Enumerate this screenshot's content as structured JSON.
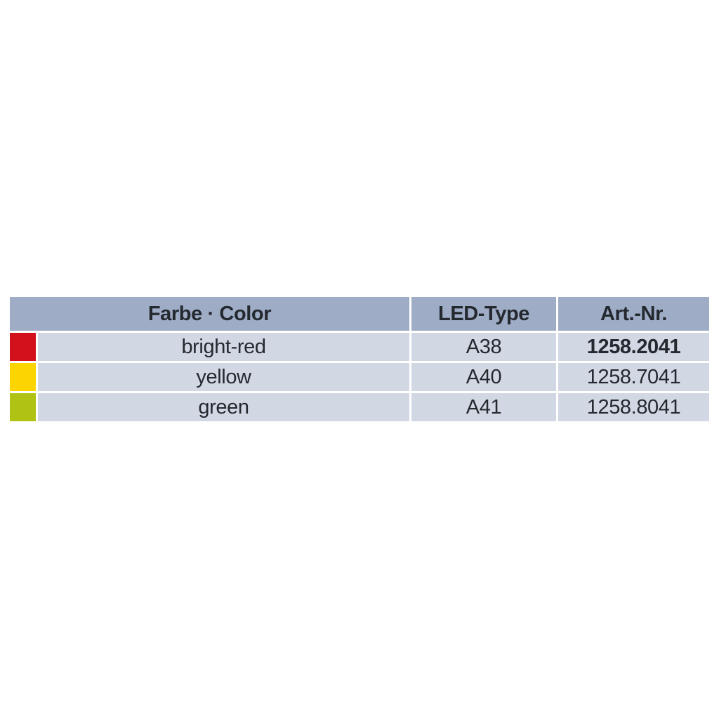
{
  "page": {
    "background": "#ffffff"
  },
  "table": {
    "columns": [
      {
        "key": "color",
        "label": "Farbe · Color"
      },
      {
        "key": "led_type",
        "label": "LED-Type"
      },
      {
        "key": "art_nr",
        "label": "Art.-Nr."
      }
    ],
    "rows": [
      {
        "swatch": "bright-red-swatch",
        "swatch_color": "#D2111C",
        "color": "bright-red",
        "led_type": "A38",
        "art_nr": "1258.2041",
        "art_nr_emphasis": "bold"
      },
      {
        "swatch": "yellow-swatch",
        "swatch_color": "#FCD500",
        "color": "yellow",
        "led_type": "A40",
        "art_nr": "1258.7041",
        "art_nr_emphasis": "regular"
      },
      {
        "swatch": "green-swatch",
        "swatch_color": "#B0C314",
        "color": "green",
        "led_type": "A41",
        "art_nr": "1258.8041",
        "art_nr_emphasis": "regular"
      }
    ],
    "colors": {
      "header_bg": "#9EACC6",
      "row_bg": "#D2D8E3",
      "text": "#24282F",
      "separator": "#FFFFFF"
    }
  }
}
